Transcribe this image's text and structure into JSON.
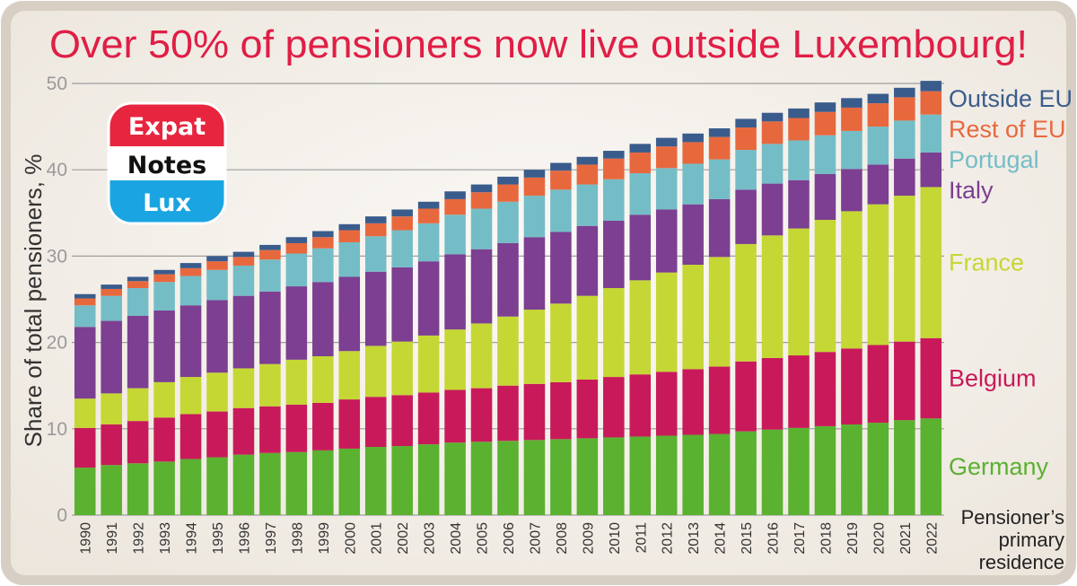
{
  "colors": {
    "title": "#e01e46",
    "frame": "#d8cfc4",
    "panel": "#f6f3ee",
    "grid": "#9e9e9e"
  },
  "logo": {
    "top": "Expat",
    "middle": "Notes",
    "bottom": "Lux",
    "top_color": "#e8253f",
    "bottom_color": "#1aa5e2"
  },
  "note": [
    "Pensioner’s",
    "primary",
    "residence"
  ],
  "chart_data": {
    "type": "bar",
    "stacked": true,
    "title": "Over 50% of pensioners now live outside Luxembourg!",
    "xlabel": "",
    "ylabel": "Share of total pensioners, %",
    "ylim": [
      0,
      50
    ],
    "yticks": [
      0,
      10,
      20,
      30,
      40,
      50
    ],
    "grid": true,
    "legend_position": "right",
    "categories": [
      "1990",
      "1991",
      "1992",
      "1993",
      "1994",
      "1995",
      "1996",
      "1997",
      "1998",
      "1999",
      "2000",
      "2001",
      "2002",
      "2003",
      "2004",
      "2005",
      "2006",
      "2007",
      "2008",
      "2009",
      "2010",
      "2011",
      "2012",
      "2013",
      "2014",
      "2015",
      "2016",
      "2017",
      "2018",
      "2019",
      "2020",
      "2021",
      "2022"
    ],
    "series": [
      {
        "name": "Germany",
        "color": "#5bb130",
        "values": [
          5.5,
          5.8,
          6.0,
          6.2,
          6.5,
          6.7,
          7.0,
          7.2,
          7.3,
          7.5,
          7.7,
          7.9,
          8.0,
          8.2,
          8.4,
          8.5,
          8.6,
          8.7,
          8.8,
          8.9,
          9.0,
          9.1,
          9.2,
          9.3,
          9.4,
          9.7,
          9.9,
          10.1,
          10.3,
          10.5,
          10.7,
          11.0,
          11.2
        ]
      },
      {
        "name": "Belgium",
        "color": "#c81a5a",
        "values": [
          4.6,
          4.7,
          4.9,
          5.1,
          5.2,
          5.3,
          5.4,
          5.4,
          5.5,
          5.5,
          5.7,
          5.8,
          5.9,
          6.0,
          6.1,
          6.2,
          6.4,
          6.5,
          6.6,
          6.8,
          7.0,
          7.2,
          7.4,
          7.6,
          7.8,
          8.1,
          8.3,
          8.4,
          8.6,
          8.8,
          9.0,
          9.1,
          9.3
        ]
      },
      {
        "name": "France",
        "color": "#c5d734",
        "values": [
          3.4,
          3.6,
          3.8,
          4.1,
          4.3,
          4.5,
          4.6,
          4.9,
          5.2,
          5.4,
          5.6,
          5.9,
          6.2,
          6.6,
          7.0,
          7.5,
          8.0,
          8.6,
          9.1,
          9.7,
          10.3,
          10.9,
          11.5,
          12.1,
          12.7,
          13.6,
          14.2,
          14.7,
          15.3,
          15.9,
          16.3,
          16.9,
          17.5
        ]
      },
      {
        "name": "Italy",
        "color": "#7c3f91",
        "values": [
          8.3,
          8.4,
          8.4,
          8.3,
          8.3,
          8.4,
          8.4,
          8.4,
          8.5,
          8.6,
          8.6,
          8.6,
          8.6,
          8.6,
          8.7,
          8.6,
          8.5,
          8.4,
          8.3,
          8.1,
          7.8,
          7.6,
          7.3,
          7.0,
          6.7,
          6.3,
          6.0,
          5.6,
          5.3,
          4.9,
          4.6,
          4.3,
          4.0
        ]
      },
      {
        "name": "Portugal",
        "color": "#74bdc7",
        "values": [
          2.5,
          2.9,
          3.2,
          3.3,
          3.4,
          3.5,
          3.5,
          3.7,
          3.8,
          3.9,
          4.0,
          4.1,
          4.3,
          4.4,
          4.6,
          4.7,
          4.8,
          4.8,
          4.9,
          4.8,
          4.8,
          4.8,
          4.8,
          4.7,
          4.6,
          4.6,
          4.6,
          4.6,
          4.5,
          4.4,
          4.4,
          4.4,
          4.4
        ]
      },
      {
        "name": "Rest of EU",
        "color": "#e8683e",
        "values": [
          0.8,
          0.8,
          0.8,
          0.9,
          0.9,
          1.0,
          1.0,
          1.1,
          1.2,
          1.3,
          1.4,
          1.5,
          1.6,
          1.7,
          1.8,
          1.9,
          2.0,
          2.1,
          2.2,
          2.3,
          2.4,
          2.4,
          2.5,
          2.5,
          2.6,
          2.6,
          2.6,
          2.6,
          2.7,
          2.7,
          2.7,
          2.7,
          2.7
        ]
      },
      {
        "name": "Outside EU",
        "color": "#3a5c8c",
        "values": [
          0.5,
          0.5,
          0.5,
          0.5,
          0.6,
          0.6,
          0.6,
          0.6,
          0.7,
          0.7,
          0.7,
          0.8,
          0.8,
          0.8,
          0.9,
          0.9,
          0.9,
          0.9,
          0.9,
          0.9,
          0.9,
          1.0,
          1.0,
          1.0,
          1.0,
          1.0,
          1.0,
          1.1,
          1.1,
          1.1,
          1.1,
          1.1,
          1.2
        ]
      }
    ]
  }
}
